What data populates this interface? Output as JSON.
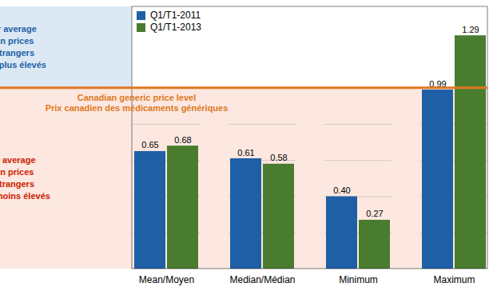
{
  "chart_data": {
    "type": "bar",
    "categories": [
      "Mean/Moyen",
      "Median/Médian",
      "Minimum",
      "Maximum"
    ],
    "series": [
      {
        "name": "Q1/T1-2011",
        "color": "#1f5fa6",
        "values": [
          0.65,
          0.61,
          0.4,
          0.99
        ],
        "value_labels": [
          "0.65",
          "0.61",
          "0.40",
          "0.99"
        ]
      },
      {
        "name": "Q1/T1-2013",
        "color": "#4a7c2f",
        "values": [
          0.68,
          0.58,
          0.27,
          1.29
        ],
        "value_labels": [
          "0.68",
          "0.58",
          "0.27",
          "1.29"
        ]
      }
    ],
    "ylim": [
      0,
      1.45
    ],
    "yticks": [
      0.2,
      0.4,
      0.6,
      0.8
    ],
    "grid": true,
    "tick_labels": "x",
    "data_labels": true,
    "legend": "upper left",
    "reference_line": {
      "value": 1.0,
      "color": "#e07820",
      "label": "Canadian generic price level\nPrix canadien des médicaments génériques"
    },
    "annotations": [
      {
        "text": "Higher average\nforeign prices\nPrix étrangers\nmoyens plus élevés",
        "color": "#1f5fa6",
        "background": "#dce9f5",
        "position": "above"
      },
      {
        "text": "Lower average\nforeign prices\nPrix étrangers\nmoyens moins élevés",
        "color": "#cc2200",
        "background": "#fce8e0",
        "position": "below"
      }
    ]
  }
}
